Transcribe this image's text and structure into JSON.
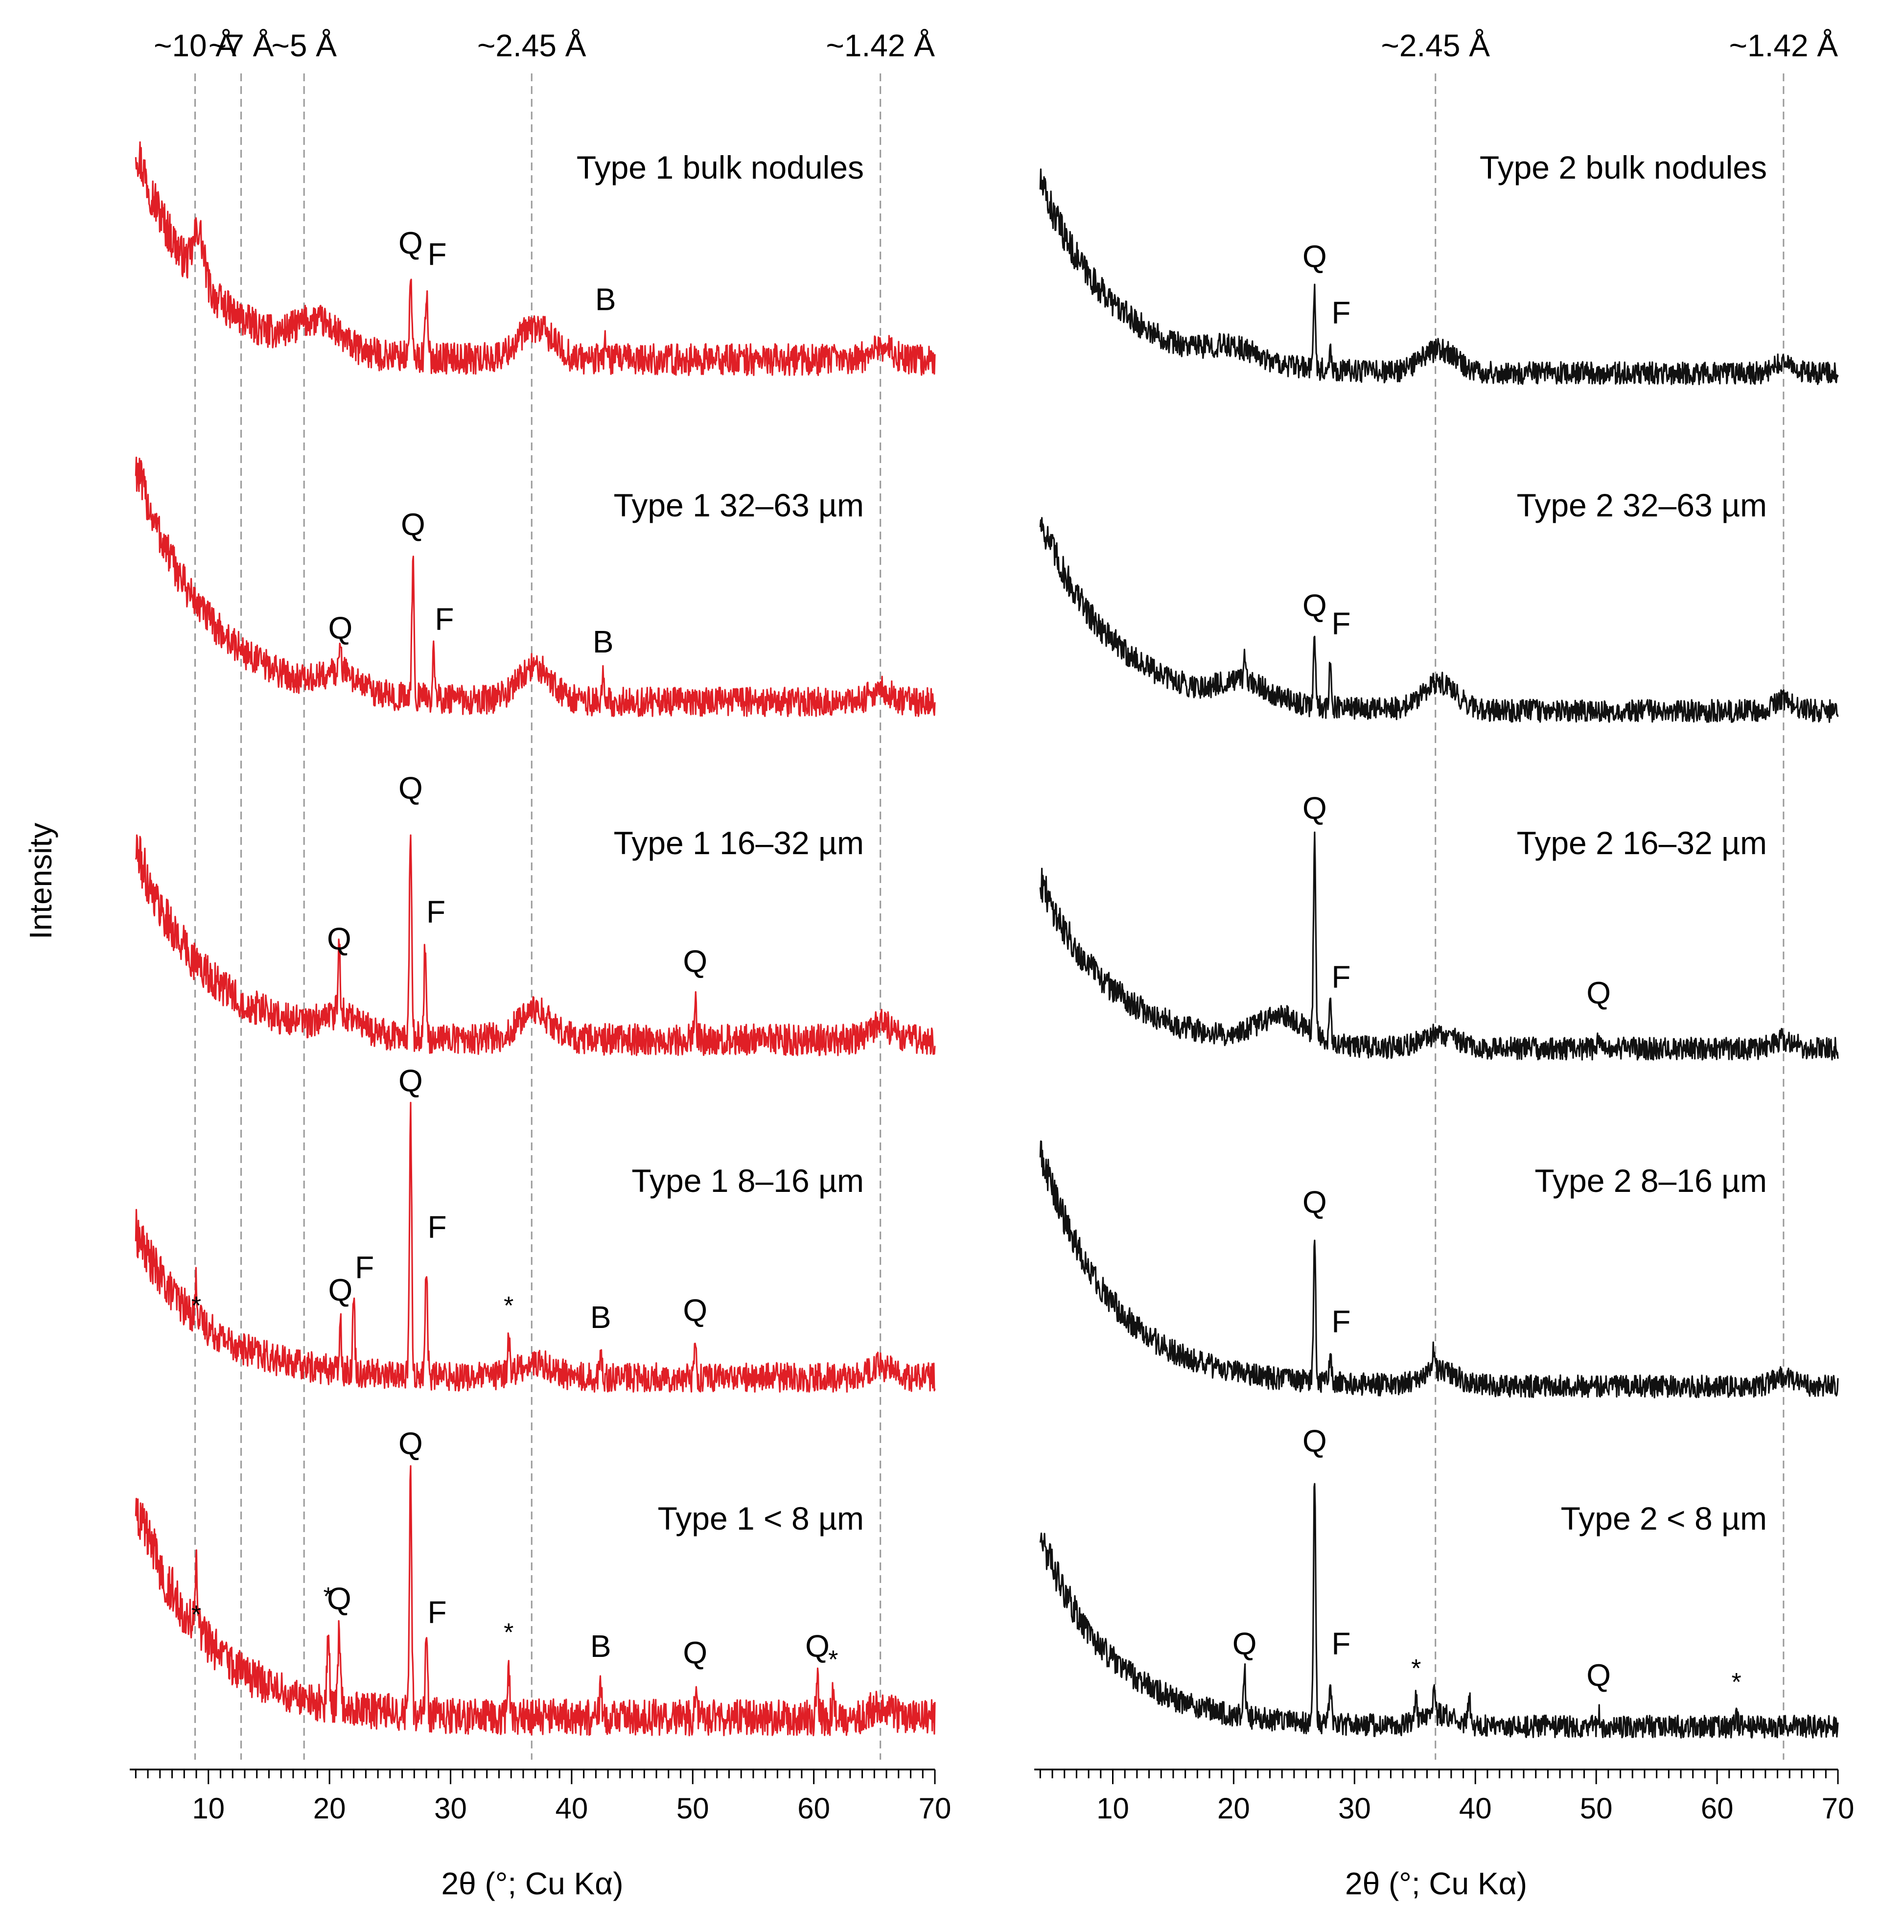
{
  "y_axis_label": "Intensity",
  "chart_data": [
    {
      "type": "line",
      "panel": "left",
      "color": "#e01f26",
      "xlabel": "2θ (°; Cu Kα)",
      "xlim": [
        3.5,
        70
      ],
      "xticks": [
        10,
        20,
        30,
        40,
        50,
        60,
        70
      ],
      "reference_lines": [
        {
          "x": 8.9,
          "label": "~10 Å"
        },
        {
          "x": 12.7,
          "label": "~7 Å"
        },
        {
          "x": 17.9,
          "label": "~5 Å"
        },
        {
          "x": 36.7,
          "label": "~2.45 Å"
        },
        {
          "x": 65.5,
          "label": "~1.42 Å"
        }
      ],
      "series": [
        {
          "name": "Type 1 bulk nodules",
          "start_intensity": 0.95,
          "baseline": 0.12,
          "decay": 2.2,
          "noise": 0.07,
          "humps": [
            {
              "x": 9.2,
              "h": 0.22,
              "w": 0.6
            },
            {
              "x": 19,
              "h": 0.12,
              "w": 2.5
            },
            {
              "x": 37,
              "h": 0.14,
              "w": 2
            },
            {
              "x": 65.5,
              "h": 0.06,
              "w": 1.2
            }
          ],
          "peaks": [
            {
              "x": 26.7,
              "h": 0.35,
              "label": "Q"
            },
            {
              "x": 28.0,
              "h": 0.3,
              "label": "F"
            },
            {
              "x": 42.8,
              "h": 0.1,
              "label": "B"
            }
          ]
        },
        {
          "name": "Type 1 32–63 µm",
          "start_intensity": 1.05,
          "baseline": 0.1,
          "decay": 2.4,
          "noise": 0.065,
          "humps": [
            {
              "x": 21,
              "h": 0.08,
              "w": 2
            },
            {
              "x": 37,
              "h": 0.15,
              "w": 2
            },
            {
              "x": 65.5,
              "h": 0.06,
              "w": 1.2
            }
          ],
          "peaks": [
            {
              "x": 20.9,
              "h": 0.16,
              "label": "Q"
            },
            {
              "x": 26.9,
              "h": 0.62,
              "label": "Q"
            },
            {
              "x": 28.6,
              "h": 0.2,
              "label": "F"
            },
            {
              "x": 42.6,
              "h": 0.1,
              "label": "B"
            }
          ]
        },
        {
          "name": "Type 1 16–32 µm",
          "start_intensity": 0.85,
          "baseline": 0.1,
          "decay": 2.3,
          "noise": 0.07,
          "humps": [
            {
              "x": 21,
              "h": 0.08,
              "w": 2
            },
            {
              "x": 37,
              "h": 0.12,
              "w": 2
            },
            {
              "x": 65.5,
              "h": 0.07,
              "w": 1.2
            }
          ],
          "peaks": [
            {
              "x": 20.8,
              "h": 0.28,
              "label": "Q"
            },
            {
              "x": 26.7,
              "h": 0.95,
              "label": "Q"
            },
            {
              "x": 27.9,
              "h": 0.4,
              "label": "F"
            },
            {
              "x": 50.2,
              "h": 0.18,
              "label": "Q"
            }
          ]
        },
        {
          "name": "Type 1 8–16 µm",
          "start_intensity": 0.65,
          "baseline": 0.1,
          "decay": 2.3,
          "noise": 0.065,
          "humps": [
            {
              "x": 37,
              "h": 0.06,
              "w": 2
            },
            {
              "x": 65.5,
              "h": 0.05,
              "w": 1.2
            }
          ],
          "peaks": [
            {
              "x": 9.0,
              "h": 0.16,
              "label": "*"
            },
            {
              "x": 20.9,
              "h": 0.22,
              "label": "Q"
            },
            {
              "x": 22.0,
              "h": 0.32,
              "label": "F"
            },
            {
              "x": 26.7,
              "h": 1.15,
              "label": "Q"
            },
            {
              "x": 28.0,
              "h": 0.5,
              "label": "F"
            },
            {
              "x": 34.8,
              "h": 0.16,
              "label": "*"
            },
            {
              "x": 42.4,
              "h": 0.1,
              "label": "B"
            },
            {
              "x": 50.2,
              "h": 0.13,
              "label": "Q"
            }
          ]
        },
        {
          "name": "Type 1 < 8 µm",
          "start_intensity": 0.95,
          "baseline": 0.1,
          "decay": 2.4,
          "noise": 0.08,
          "humps": [
            {
              "x": 65.5,
              "h": 0.05,
              "w": 1.2
            }
          ],
          "peaks": [
            {
              "x": 9.0,
              "h": 0.3,
              "label": "*"
            },
            {
              "x": 19.9,
              "h": 0.38,
              "label": "*"
            },
            {
              "x": 20.8,
              "h": 0.36,
              "label": "Q"
            },
            {
              "x": 26.7,
              "h": 1.05,
              "label": "Q"
            },
            {
              "x": 28.0,
              "h": 0.3,
              "label": "F"
            },
            {
              "x": 34.8,
              "h": 0.22,
              "label": "*"
            },
            {
              "x": 42.4,
              "h": 0.15,
              "label": "B"
            },
            {
              "x": 50.2,
              "h": 0.12,
              "label": "Q"
            },
            {
              "x": 60.3,
              "h": 0.15,
              "label": "Q"
            },
            {
              "x": 61.6,
              "h": 0.1,
              "label": "*"
            }
          ]
        }
      ]
    },
    {
      "type": "line",
      "panel": "right",
      "color": "#111111",
      "xlabel": "2θ (°; Cu Kα)",
      "xlim": [
        3.5,
        70
      ],
      "xticks": [
        10,
        20,
        30,
        40,
        50,
        60,
        70
      ],
      "reference_lines": [
        {
          "x": 36.7,
          "label": "~2.45 Å"
        },
        {
          "x": 65.5,
          "label": "~1.42 Å"
        }
      ],
      "series": [
        {
          "name": "Type 2 bulk nodules",
          "start_intensity": 0.85,
          "baseline": 0.06,
          "decay": 2.5,
          "noise": 0.05,
          "humps": [
            {
              "x": 20,
              "h": 0.06,
              "w": 3
            },
            {
              "x": 37,
              "h": 0.1,
              "w": 2
            },
            {
              "x": 65.5,
              "h": 0.04,
              "w": 1.2
            }
          ],
          "peaks": [
            {
              "x": 26.7,
              "h": 0.35,
              "label": "Q"
            },
            {
              "x": 28.0,
              "h": 0.1,
              "label": "F"
            }
          ]
        },
        {
          "name": "Type 2 32–63 µm",
          "start_intensity": 0.85,
          "baseline": 0.06,
          "decay": 2.5,
          "noise": 0.05,
          "humps": [
            {
              "x": 21,
              "h": 0.08,
              "w": 3
            },
            {
              "x": 37,
              "h": 0.12,
              "w": 2
            },
            {
              "x": 65.5,
              "h": 0.05,
              "w": 1.2
            }
          ],
          "peaks": [
            {
              "x": 20.9,
              "h": 0.1,
              "label": null
            },
            {
              "x": 26.7,
              "h": 0.3,
              "label": "Q"
            },
            {
              "x": 28.0,
              "h": 0.22,
              "label": "F"
            }
          ]
        },
        {
          "name": "Type 2 16–32 µm",
          "start_intensity": 0.75,
          "baseline": 0.06,
          "decay": 2.4,
          "noise": 0.05,
          "humps": [
            {
              "x": 24,
              "h": 0.12,
              "w": 3
            },
            {
              "x": 37,
              "h": 0.06,
              "w": 2
            },
            {
              "x": 65.5,
              "h": 0.04,
              "w": 1.2
            }
          ],
          "peaks": [
            {
              "x": 26.7,
              "h": 0.9,
              "label": "Q"
            },
            {
              "x": 28.0,
              "h": 0.15,
              "label": "F"
            },
            {
              "x": 50.2,
              "h": 0.08,
              "label": "Q"
            }
          ]
        },
        {
          "name": "Type 2 8–16 µm",
          "start_intensity": 1.05,
          "baseline": 0.06,
          "decay": 2.4,
          "noise": 0.05,
          "humps": [
            {
              "x": 37,
              "h": 0.07,
              "w": 2
            },
            {
              "x": 65.5,
              "h": 0.04,
              "w": 1.2
            }
          ],
          "peaks": [
            {
              "x": 26.7,
              "h": 0.65,
              "label": "Q"
            },
            {
              "x": 28.0,
              "h": 0.12,
              "label": "F"
            },
            {
              "x": 36.6,
              "h": 0.12,
              "label": null
            }
          ]
        },
        {
          "name": "Type 2 < 8 µm",
          "start_intensity": 0.85,
          "baseline": 0.06,
          "decay": 2.4,
          "noise": 0.05,
          "humps": [
            {
              "x": 37,
              "h": 0.05,
              "w": 2
            }
          ],
          "peaks": [
            {
              "x": 20.9,
              "h": 0.2,
              "label": "Q"
            },
            {
              "x": 26.7,
              "h": 1.1,
              "label": "Q"
            },
            {
              "x": 28.0,
              "h": 0.2,
              "label": "F"
            },
            {
              "x": 35.1,
              "h": 0.1,
              "label": "*"
            },
            {
              "x": 36.6,
              "h": 0.1,
              "label": null
            },
            {
              "x": 39.5,
              "h": 0.12,
              "label": null
            },
            {
              "x": 50.2,
              "h": 0.06,
              "label": "Q"
            },
            {
              "x": 61.6,
              "h": 0.04,
              "label": "*"
            }
          ]
        }
      ]
    }
  ]
}
